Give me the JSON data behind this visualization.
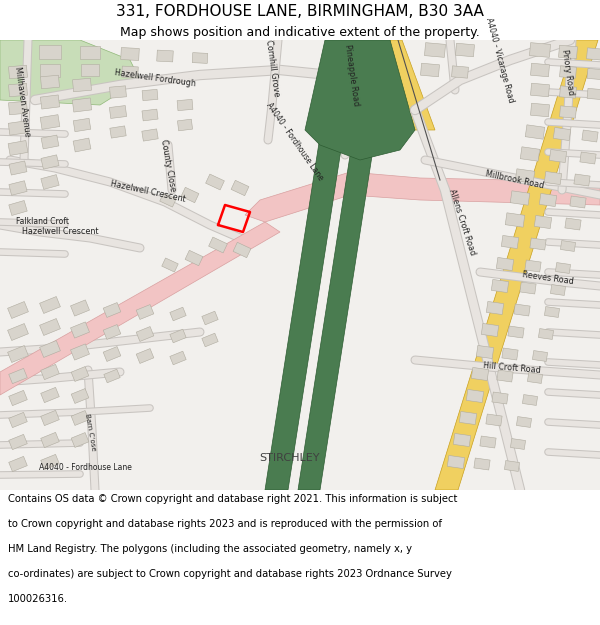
{
  "title_line1": "331, FORDHOUSE LANE, BIRMINGHAM, B30 3AA",
  "title_line2": "Map shows position and indicative extent of the property.",
  "footer_lines": [
    "Contains OS data © Crown copyright and database right 2021. This information is subject",
    "to Crown copyright and database rights 2023 and is reproduced with the permission of",
    "HM Land Registry. The polygons (including the associated geometry, namely x, y",
    "co-ordinates) are subject to Crown copyright and database rights 2023 Ordnance Survey",
    "100026316."
  ],
  "map_bg": "#f2f0ed",
  "title_bg": "#ffffff",
  "footer_bg": "#ffffff",
  "title_fontsize": 11,
  "subtitle_fontsize": 9,
  "footer_fontsize": 7.2,
  "pink_road": "#f2c4c4",
  "pink_outline": "#d8a0a0",
  "green_road": "#4a7c50",
  "green_dark": "#2d5c32",
  "yellow_road": "#f0d060",
  "yellow_outline": "#c8a020",
  "park_fill": "#c8ddb8",
  "park_outline": "#90b878",
  "building_fill": "#d8d4cc",
  "building_outline": "#b0aca0",
  "road_fill": "#ffffff",
  "road_outline": "#c0bcb8",
  "label_color": "#333333",
  "red_box": "#ff0000"
}
